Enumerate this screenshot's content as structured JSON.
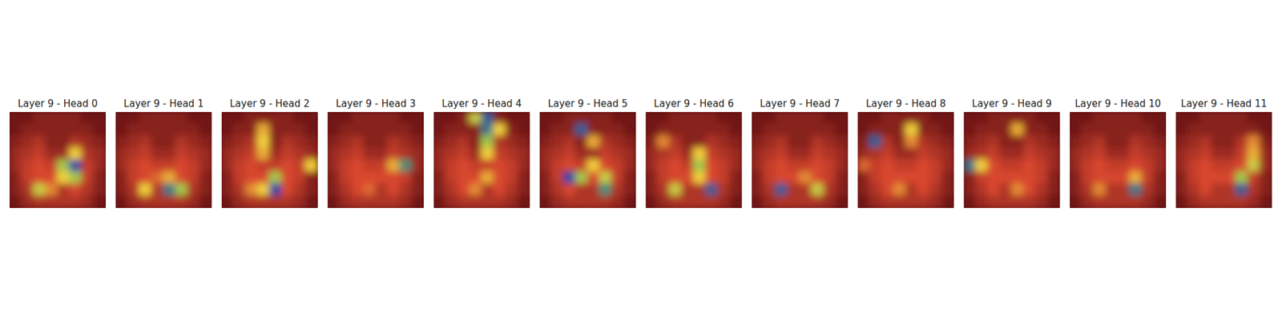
{
  "chart_data": [
    {
      "type": "heatmap",
      "title": "Layer 9 - Head 0",
      "tick_labels": false,
      "zlim": [
        0,
        1
      ],
      "cells": [
        [
          0.05,
          0.05,
          0.1,
          0.1,
          0.1,
          0.1,
          0.05,
          0.05
        ],
        [
          0.05,
          0.1,
          0.1,
          0.1,
          0.1,
          0.1,
          0.1,
          0.05
        ],
        [
          0.1,
          0.15,
          0.2,
          0.1,
          0.1,
          0.2,
          0.15,
          0.1
        ],
        [
          0.15,
          0.2,
          0.25,
          0.15,
          0.15,
          0.5,
          0.2,
          0.15
        ],
        [
          0.15,
          0.25,
          0.3,
          0.25,
          0.6,
          0.95,
          0.25,
          0.15
        ],
        [
          0.1,
          0.25,
          0.3,
          0.3,
          0.5,
          0.6,
          0.25,
          0.1
        ],
        [
          0.1,
          0.2,
          0.55,
          0.4,
          0.2,
          0.3,
          0.2,
          0.1
        ],
        [
          0.05,
          0.15,
          0.2,
          0.2,
          0.2,
          0.2,
          0.15,
          0.05
        ]
      ]
    },
    {
      "type": "heatmap",
      "title": "Layer 9 - Head 1",
      "tick_labels": false,
      "zlim": [
        0,
        1
      ],
      "cells": [
        [
          0.05,
          0.05,
          0.1,
          0.1,
          0.1,
          0.1,
          0.05,
          0.05
        ],
        [
          0.05,
          0.1,
          0.1,
          0.1,
          0.1,
          0.1,
          0.1,
          0.05
        ],
        [
          0.1,
          0.15,
          0.2,
          0.1,
          0.1,
          0.2,
          0.15,
          0.1
        ],
        [
          0.15,
          0.2,
          0.25,
          0.15,
          0.15,
          0.25,
          0.2,
          0.15
        ],
        [
          0.15,
          0.25,
          0.3,
          0.25,
          0.25,
          0.3,
          0.25,
          0.15
        ],
        [
          0.1,
          0.25,
          0.3,
          0.35,
          0.45,
          0.3,
          0.25,
          0.1
        ],
        [
          0.1,
          0.2,
          0.5,
          0.2,
          0.85,
          0.6,
          0.2,
          0.1
        ],
        [
          0.05,
          0.15,
          0.2,
          0.2,
          0.2,
          0.2,
          0.15,
          0.05
        ]
      ]
    },
    {
      "type": "heatmap",
      "title": "Layer 9 - Head 2",
      "tick_labels": false,
      "zlim": [
        0,
        1
      ],
      "cells": [
        [
          0.05,
          0.05,
          0.1,
          0.1,
          0.1,
          0.1,
          0.05,
          0.05
        ],
        [
          0.05,
          0.1,
          0.1,
          0.45,
          0.1,
          0.1,
          0.1,
          0.05
        ],
        [
          0.1,
          0.15,
          0.2,
          0.5,
          0.1,
          0.2,
          0.15,
          0.1
        ],
        [
          0.15,
          0.2,
          0.25,
          0.45,
          0.15,
          0.25,
          0.2,
          0.15
        ],
        [
          0.15,
          0.25,
          0.3,
          0.25,
          0.25,
          0.3,
          0.25,
          0.5
        ],
        [
          0.1,
          0.25,
          0.3,
          0.3,
          0.6,
          0.3,
          0.25,
          0.1
        ],
        [
          0.1,
          0.2,
          0.4,
          0.5,
          0.95,
          0.3,
          0.2,
          0.1
        ],
        [
          0.05,
          0.15,
          0.2,
          0.2,
          0.2,
          0.2,
          0.15,
          0.05
        ]
      ]
    },
    {
      "type": "heatmap",
      "title": "Layer 9 - Head 3",
      "tick_labels": false,
      "zlim": [
        0,
        1
      ],
      "cells": [
        [
          0.05,
          0.05,
          0.1,
          0.1,
          0.1,
          0.1,
          0.05,
          0.05
        ],
        [
          0.05,
          0.1,
          0.1,
          0.1,
          0.1,
          0.1,
          0.1,
          0.05
        ],
        [
          0.1,
          0.15,
          0.2,
          0.1,
          0.1,
          0.2,
          0.15,
          0.1
        ],
        [
          0.15,
          0.2,
          0.25,
          0.15,
          0.15,
          0.25,
          0.2,
          0.15
        ],
        [
          0.15,
          0.25,
          0.3,
          0.25,
          0.25,
          0.45,
          0.8,
          0.15
        ],
        [
          0.1,
          0.25,
          0.3,
          0.3,
          0.3,
          0.3,
          0.25,
          0.1
        ],
        [
          0.1,
          0.2,
          0.3,
          0.35,
          0.2,
          0.3,
          0.2,
          0.1
        ],
        [
          0.05,
          0.15,
          0.2,
          0.2,
          0.2,
          0.2,
          0.15,
          0.05
        ]
      ]
    },
    {
      "type": "heatmap",
      "title": "Layer 9 - Head 4",
      "tick_labels": false,
      "zlim": [
        0,
        1
      ],
      "cells": [
        [
          0.05,
          0.05,
          0.1,
          0.55,
          0.9,
          0.1,
          0.05,
          0.05
        ],
        [
          0.05,
          0.1,
          0.1,
          0.1,
          0.85,
          0.5,
          0.1,
          0.05
        ],
        [
          0.1,
          0.15,
          0.2,
          0.1,
          0.6,
          0.2,
          0.15,
          0.1
        ],
        [
          0.15,
          0.2,
          0.25,
          0.15,
          0.5,
          0.25,
          0.2,
          0.15
        ],
        [
          0.15,
          0.25,
          0.3,
          0.25,
          0.25,
          0.3,
          0.25,
          0.15
        ],
        [
          0.1,
          0.25,
          0.3,
          0.3,
          0.45,
          0.3,
          0.25,
          0.1
        ],
        [
          0.1,
          0.2,
          0.3,
          0.4,
          0.2,
          0.3,
          0.2,
          0.1
        ],
        [
          0.05,
          0.15,
          0.2,
          0.2,
          0.2,
          0.2,
          0.15,
          0.05
        ]
      ]
    },
    {
      "type": "heatmap",
      "title": "Layer 9 - Head 5",
      "tick_labels": false,
      "zlim": [
        0,
        1
      ],
      "cells": [
        [
          0.05,
          0.05,
          0.1,
          0.1,
          0.1,
          0.1,
          0.05,
          0.05
        ],
        [
          0.05,
          0.1,
          0.1,
          0.9,
          0.1,
          0.1,
          0.1,
          0.05
        ],
        [
          0.1,
          0.15,
          0.2,
          0.1,
          0.45,
          0.2,
          0.15,
          0.1
        ],
        [
          0.15,
          0.2,
          0.25,
          0.15,
          0.15,
          0.25,
          0.2,
          0.15
        ],
        [
          0.15,
          0.25,
          0.3,
          0.25,
          0.5,
          0.3,
          0.25,
          0.15
        ],
        [
          0.1,
          0.25,
          0.95,
          0.6,
          0.3,
          0.55,
          0.25,
          0.1
        ],
        [
          0.1,
          0.2,
          0.3,
          0.2,
          0.2,
          0.8,
          0.2,
          0.1
        ],
        [
          0.05,
          0.15,
          0.2,
          0.2,
          0.2,
          0.2,
          0.15,
          0.05
        ]
      ]
    },
    {
      "type": "heatmap",
      "title": "Layer 9 - Head 6",
      "tick_labels": false,
      "zlim": [
        0,
        1
      ],
      "cells": [
        [
          0.05,
          0.05,
          0.1,
          0.1,
          0.1,
          0.1,
          0.05,
          0.05
        ],
        [
          0.05,
          0.1,
          0.1,
          0.1,
          0.1,
          0.1,
          0.1,
          0.05
        ],
        [
          0.1,
          0.4,
          0.2,
          0.1,
          0.1,
          0.2,
          0.15,
          0.1
        ],
        [
          0.15,
          0.2,
          0.25,
          0.15,
          0.5,
          0.25,
          0.2,
          0.15
        ],
        [
          0.15,
          0.25,
          0.3,
          0.25,
          0.6,
          0.3,
          0.25,
          0.15
        ],
        [
          0.1,
          0.25,
          0.3,
          0.3,
          0.5,
          0.3,
          0.25,
          0.1
        ],
        [
          0.1,
          0.2,
          0.55,
          0.2,
          0.2,
          0.9,
          0.2,
          0.1
        ],
        [
          0.05,
          0.15,
          0.2,
          0.2,
          0.2,
          0.2,
          0.15,
          0.05
        ]
      ]
    },
    {
      "type": "heatmap",
      "title": "Layer 9 - Head 7",
      "tick_labels": false,
      "zlim": [
        0,
        1
      ],
      "cells": [
        [
          0.05,
          0.05,
          0.1,
          0.1,
          0.1,
          0.1,
          0.05,
          0.05
        ],
        [
          0.05,
          0.1,
          0.1,
          0.1,
          0.1,
          0.1,
          0.1,
          0.05
        ],
        [
          0.1,
          0.15,
          0.2,
          0.1,
          0.1,
          0.2,
          0.15,
          0.1
        ],
        [
          0.15,
          0.2,
          0.25,
          0.15,
          0.15,
          0.25,
          0.2,
          0.15
        ],
        [
          0.15,
          0.25,
          0.3,
          0.25,
          0.25,
          0.3,
          0.25,
          0.15
        ],
        [
          0.1,
          0.25,
          0.3,
          0.3,
          0.4,
          0.3,
          0.25,
          0.1
        ],
        [
          0.1,
          0.2,
          0.9,
          0.2,
          0.2,
          0.55,
          0.2,
          0.1
        ],
        [
          0.05,
          0.15,
          0.2,
          0.2,
          0.2,
          0.2,
          0.15,
          0.05
        ]
      ]
    },
    {
      "type": "heatmap",
      "title": "Layer 9 - Head 8",
      "tick_labels": false,
      "zlim": [
        0,
        1
      ],
      "cells": [
        [
          0.05,
          0.05,
          0.1,
          0.1,
          0.1,
          0.1,
          0.05,
          0.05
        ],
        [
          0.05,
          0.1,
          0.1,
          0.1,
          0.5,
          0.1,
          0.1,
          0.05
        ],
        [
          0.1,
          0.9,
          0.2,
          0.1,
          0.4,
          0.2,
          0.15,
          0.1
        ],
        [
          0.15,
          0.2,
          0.25,
          0.15,
          0.15,
          0.25,
          0.2,
          0.15
        ],
        [
          0.35,
          0.25,
          0.3,
          0.25,
          0.25,
          0.3,
          0.25,
          0.15
        ],
        [
          0.1,
          0.25,
          0.3,
          0.3,
          0.3,
          0.3,
          0.25,
          0.1
        ],
        [
          0.1,
          0.2,
          0.3,
          0.4,
          0.2,
          0.3,
          0.2,
          0.1
        ],
        [
          0.05,
          0.15,
          0.2,
          0.2,
          0.2,
          0.2,
          0.15,
          0.05
        ]
      ]
    },
    {
      "type": "heatmap",
      "title": "Layer 9 - Head 9",
      "tick_labels": false,
      "zlim": [
        0,
        1
      ],
      "cells": [
        [
          0.05,
          0.05,
          0.1,
          0.1,
          0.1,
          0.1,
          0.05,
          0.05
        ],
        [
          0.05,
          0.1,
          0.1,
          0.1,
          0.45,
          0.1,
          0.1,
          0.05
        ],
        [
          0.1,
          0.15,
          0.2,
          0.1,
          0.1,
          0.2,
          0.15,
          0.1
        ],
        [
          0.15,
          0.2,
          0.25,
          0.15,
          0.15,
          0.25,
          0.2,
          0.15
        ],
        [
          0.85,
          0.5,
          0.3,
          0.25,
          0.25,
          0.3,
          0.25,
          0.15
        ],
        [
          0.1,
          0.25,
          0.3,
          0.3,
          0.3,
          0.3,
          0.25,
          0.1
        ],
        [
          0.1,
          0.2,
          0.3,
          0.2,
          0.4,
          0.3,
          0.2,
          0.1
        ],
        [
          0.05,
          0.15,
          0.2,
          0.2,
          0.2,
          0.2,
          0.15,
          0.05
        ]
      ]
    },
    {
      "type": "heatmap",
      "title": "Layer 9 - Head 10",
      "tick_labels": false,
      "zlim": [
        0,
        1
      ],
      "cells": [
        [
          0.05,
          0.05,
          0.1,
          0.1,
          0.1,
          0.1,
          0.05,
          0.05
        ],
        [
          0.05,
          0.1,
          0.1,
          0.1,
          0.1,
          0.1,
          0.1,
          0.05
        ],
        [
          0.1,
          0.15,
          0.2,
          0.1,
          0.1,
          0.2,
          0.15,
          0.1
        ],
        [
          0.15,
          0.2,
          0.25,
          0.15,
          0.15,
          0.25,
          0.2,
          0.15
        ],
        [
          0.15,
          0.25,
          0.3,
          0.25,
          0.25,
          0.3,
          0.25,
          0.15
        ],
        [
          0.1,
          0.25,
          0.3,
          0.3,
          0.3,
          0.45,
          0.25,
          0.1
        ],
        [
          0.1,
          0.2,
          0.4,
          0.2,
          0.2,
          0.85,
          0.2,
          0.1
        ],
        [
          0.05,
          0.15,
          0.2,
          0.2,
          0.2,
          0.2,
          0.15,
          0.05
        ]
      ]
    },
    {
      "type": "heatmap",
      "title": "Layer 9 - Head 11",
      "tick_labels": false,
      "zlim": [
        0,
        1
      ],
      "cells": [
        [
          0.05,
          0.05,
          0.1,
          0.1,
          0.1,
          0.1,
          0.05,
          0.05
        ],
        [
          0.05,
          0.1,
          0.1,
          0.1,
          0.1,
          0.1,
          0.1,
          0.05
        ],
        [
          0.1,
          0.15,
          0.2,
          0.1,
          0.1,
          0.2,
          0.4,
          0.1
        ],
        [
          0.15,
          0.2,
          0.25,
          0.15,
          0.15,
          0.25,
          0.45,
          0.15
        ],
        [
          0.15,
          0.25,
          0.3,
          0.25,
          0.25,
          0.3,
          0.55,
          0.15
        ],
        [
          0.1,
          0.25,
          0.3,
          0.3,
          0.3,
          0.6,
          0.25,
          0.1
        ],
        [
          0.1,
          0.2,
          0.3,
          0.2,
          0.2,
          0.9,
          0.2,
          0.1
        ],
        [
          0.05,
          0.15,
          0.2,
          0.2,
          0.2,
          0.2,
          0.15,
          0.05
        ]
      ]
    }
  ]
}
